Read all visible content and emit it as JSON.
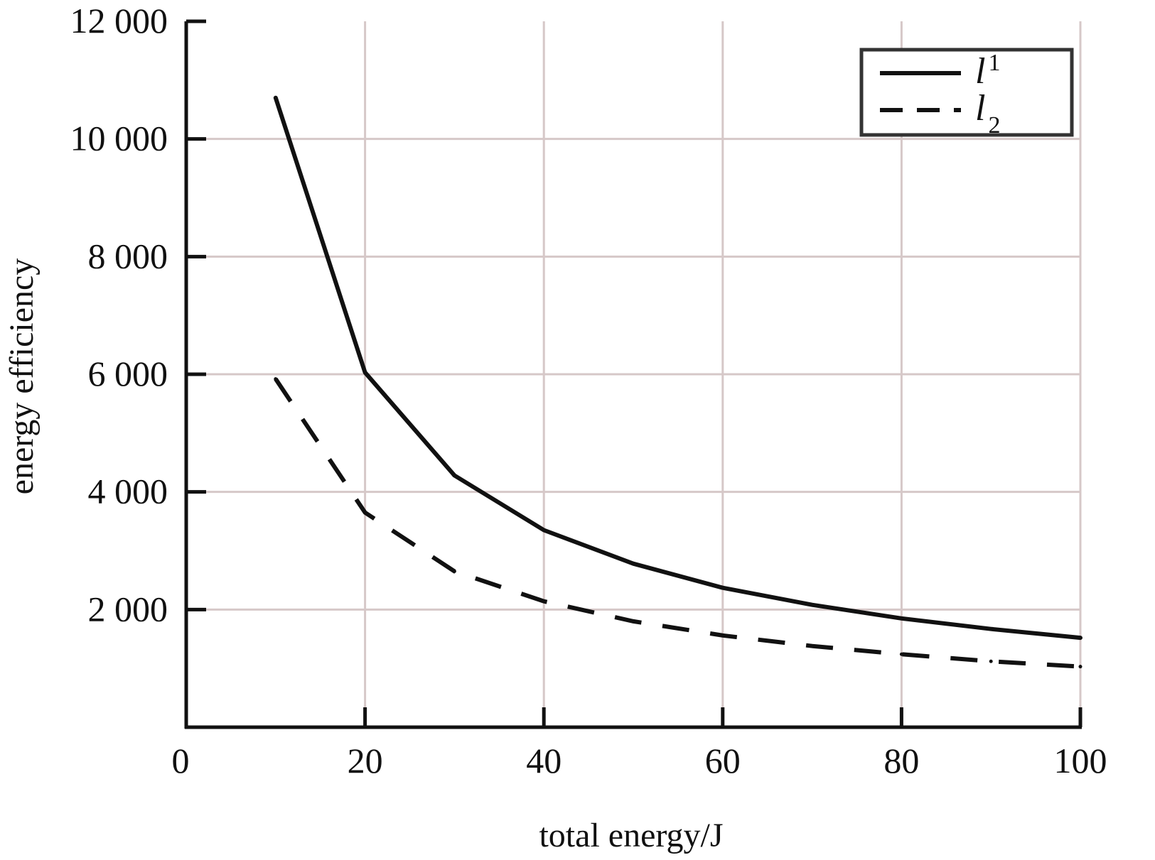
{
  "chart_data": {
    "type": "line",
    "xlabel": "total energy/J",
    "ylabel": "energy efficiency",
    "xlim": [
      0,
      100
    ],
    "ylim": [
      0,
      12000
    ],
    "x_ticks": [
      0,
      20,
      40,
      60,
      80,
      100
    ],
    "y_ticks": [
      2000,
      4000,
      6000,
      8000,
      10000,
      12000
    ],
    "x_tick_labels": [
      "0",
      "20",
      "40",
      "60",
      "80",
      "100"
    ],
    "y_tick_labels": [
      "2 000",
      "4 000",
      "6 000",
      "8 000",
      "10 000",
      "12 000"
    ],
    "grid": true,
    "legend_position": "top-right",
    "series": [
      {
        "name": "l1",
        "label_base": "l",
        "label_sub": "1",
        "style": "solid",
        "color": "#111111",
        "x": [
          10,
          20,
          30,
          40,
          50,
          60,
          70,
          80,
          90,
          100
        ],
        "values": [
          10700,
          6030,
          4280,
          3350,
          2780,
          2370,
          2080,
          1850,
          1670,
          1520
        ]
      },
      {
        "name": "l2",
        "label_base": "l",
        "label_sub": "2",
        "style": "dashed",
        "color": "#111111",
        "x": [
          10,
          20,
          30,
          40,
          50,
          60,
          70,
          80,
          90,
          100
        ],
        "values": [
          5920,
          3650,
          2650,
          2140,
          1800,
          1560,
          1380,
          1240,
          1120,
          1030
        ]
      }
    ],
    "colors": {
      "axis": "#111111",
      "grid": "#d6c8c8",
      "legend_border": "#333333"
    }
  }
}
